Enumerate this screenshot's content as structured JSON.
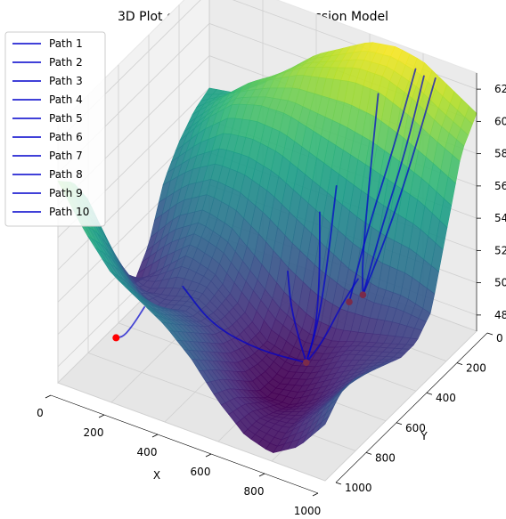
{
  "chart_data": {
    "type": "surface3d",
    "title": "3D Plot of the Polynomial Regression Model",
    "xlabel": "X",
    "ylabel": "Y",
    "zlabel": "",
    "xlim": [
      0,
      1000
    ],
    "ylim": [
      0,
      1000
    ],
    "zlim": [
      47,
      63
    ],
    "x_ticks": [
      0,
      200,
      400,
      600,
      800,
      1000
    ],
    "y_ticks": [
      0,
      200,
      400,
      600,
      800,
      1000
    ],
    "z_ticks": [
      48,
      50,
      52,
      54,
      56,
      58,
      60,
      62
    ],
    "colormap": "viridis",
    "grid": true,
    "legend_position": "top-left",
    "path_color": "#0000cc",
    "endpoint_colors": {
      "minimum": "#ff0000",
      "other": "#7a2b4a"
    },
    "series": [
      {
        "name": "Path 1"
      },
      {
        "name": "Path 2"
      },
      {
        "name": "Path 3"
      },
      {
        "name": "Path 4"
      },
      {
        "name": "Path 5"
      },
      {
        "name": "Path 6"
      },
      {
        "name": "Path 7"
      },
      {
        "name": "Path 8"
      },
      {
        "name": "Path 9"
      },
      {
        "name": "Path 10"
      }
    ],
    "surface_rows": [
      {
        "y": 0,
        "z": [
          56.0,
          56.3,
          57.5,
          59.0,
          60.5,
          61.5,
          62.5,
          62.8,
          62.5,
          61.5,
          60.5
        ]
      },
      {
        "y": 100,
        "z": [
          55.5,
          57.0,
          58.5,
          59.5,
          60.5,
          61.0,
          61.5,
          61.5,
          60.8,
          59.8,
          59.0
        ]
      },
      {
        "y": 200,
        "z": [
          54.5,
          56.5,
          58.0,
          58.5,
          58.5,
          58.0,
          57.5,
          57.0,
          56.5,
          56.0,
          55.0
        ]
      },
      {
        "y": 300,
        "z": [
          53.0,
          54.5,
          55.5,
          55.5,
          55.0,
          54.0,
          53.0,
          52.0,
          51.5,
          51.5,
          51.0
        ]
      },
      {
        "y": 400,
        "z": [
          50.0,
          52.0,
          53.0,
          52.5,
          51.0,
          49.5,
          48.5,
          48.5,
          49.0,
          49.5,
          50.0
        ]
      },
      {
        "y": 500,
        "z": [
          48.5,
          50.0,
          51.5,
          51.0,
          49.5,
          48.0,
          47.5,
          48.0,
          49.0,
          49.5,
          50.0
        ]
      },
      {
        "y": 600,
        "z": [
          50.5,
          49.5,
          50.0,
          50.5,
          49.5,
          48.0,
          47.0,
          47.5,
          48.5,
          49.5,
          50.5
        ]
      },
      {
        "y": 700,
        "z": [
          53.5,
          51.0,
          50.0,
          50.5,
          50.0,
          48.5,
          47.0,
          47.0,
          48.0,
          49.5,
          51.0
        ]
      },
      {
        "y": 800,
        "z": [
          56.5,
          53.5,
          51.5,
          51.5,
          51.0,
          49.5,
          48.0,
          47.5,
          48.0,
          49.5,
          51.5
        ]
      },
      {
        "y": 900,
        "z": [
          58.5,
          55.5,
          53.5,
          52.5,
          52.0,
          50.5,
          49.0,
          48.0,
          48.0,
          49.5,
          51.5
        ]
      },
      {
        "y": 1000,
        "z": [
          59.5,
          57.0,
          55.0,
          54.0,
          53.0,
          51.5,
          49.5,
          48.0,
          47.5,
          48.5,
          50.5
        ]
      }
    ],
    "paths": [
      {
        "name": "Path 1",
        "points": [
          [
            250,
            870,
            52.0
          ],
          [
            200,
            850,
            50.5
          ],
          [
            150,
            830,
            49.2
          ],
          [
            110,
            810,
            48.7
          ]
        ]
      },
      {
        "name": "Path 2",
        "points": [
          [
            520,
            400,
            51.5
          ],
          [
            560,
            450,
            50.0
          ],
          [
            620,
            500,
            48.8
          ],
          [
            680,
            560,
            48.3
          ]
        ]
      },
      {
        "name": "Path 3",
        "points": [
          [
            600,
            330,
            55.0
          ],
          [
            640,
            400,
            52.0
          ],
          [
            670,
            480,
            49.5
          ],
          [
            680,
            560,
            48.3
          ]
        ]
      },
      {
        "name": "Path 4",
        "points": [
          [
            640,
            290,
            56.5
          ],
          [
            660,
            380,
            53.0
          ],
          [
            675,
            470,
            50.0
          ],
          [
            680,
            560,
            48.3
          ]
        ]
      },
      {
        "name": "Path 5",
        "points": [
          [
            800,
            430,
            53.0
          ],
          [
            760,
            470,
            51.5
          ],
          [
            720,
            520,
            49.5
          ],
          [
            680,
            560,
            48.3
          ]
        ]
      },
      {
        "name": "Path 6",
        "points": [
          [
            320,
            740,
            52.5
          ],
          [
            420,
            720,
            50.5
          ],
          [
            550,
            640,
            49.0
          ],
          [
            680,
            560,
            48.3
          ]
        ]
      },
      {
        "name": "Path 7",
        "points": [
          [
            700,
            120,
            61.0
          ],
          [
            740,
            250,
            57.0
          ],
          [
            770,
            350,
            53.0
          ],
          [
            790,
            380,
            51.5
          ]
        ]
      },
      {
        "name": "Path 8",
        "points": [
          [
            820,
            30,
            62.0
          ],
          [
            820,
            150,
            58.5
          ],
          [
            810,
            290,
            55.0
          ],
          [
            790,
            380,
            51.5
          ]
        ]
      },
      {
        "name": "Path 9",
        "points": [
          [
            800,
            50,
            62.5
          ],
          [
            780,
            160,
            58.5
          ],
          [
            760,
            300,
            54.5
          ],
          [
            750,
            400,
            51.0
          ]
        ]
      },
      {
        "name": "Path 10",
        "points": [
          [
            880,
            60,
            62.5
          ],
          [
            860,
            200,
            58.0
          ],
          [
            830,
            300,
            54.5
          ],
          [
            790,
            380,
            51.5
          ]
        ]
      }
    ],
    "endpoints": [
      {
        "x": 110,
        "y": 810,
        "z": 48.7,
        "kind": "minimum"
      },
      {
        "x": 680,
        "y": 560,
        "z": 48.3,
        "kind": "other"
      },
      {
        "x": 790,
        "y": 380,
        "z": 51.5,
        "kind": "other"
      },
      {
        "x": 750,
        "y": 400,
        "z": 51.0,
        "kind": "other"
      }
    ]
  }
}
